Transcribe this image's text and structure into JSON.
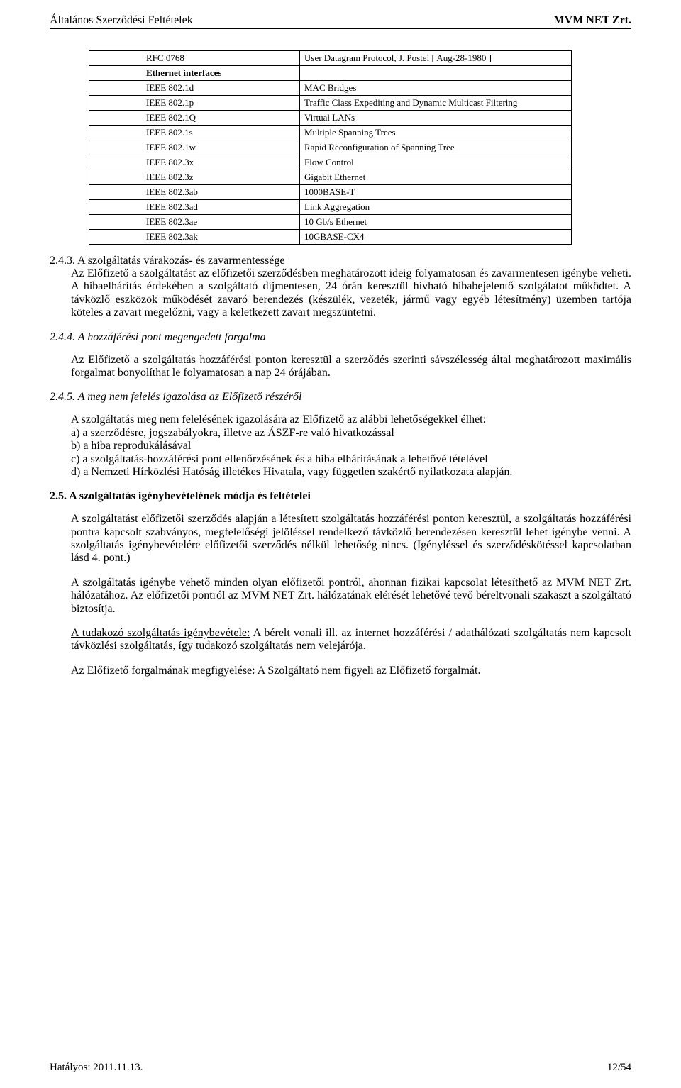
{
  "header": {
    "left": "Általános Szerződési Feltételek",
    "right": "MVM NET Zrt."
  },
  "table": {
    "rows": [
      {
        "left": "RFC 0768",
        "indent": true,
        "bold": false,
        "right": "User Datagram Protocol, J. Postel [ Aug-28-1980 ]"
      },
      {
        "left": "Ethernet interfaces",
        "indent": true,
        "bold": true,
        "right": ""
      },
      {
        "left": "IEEE 802.1d",
        "indent": true,
        "bold": false,
        "right": "MAC Bridges"
      },
      {
        "left": "IEEE 802.1p",
        "indent": true,
        "bold": false,
        "right": "Traffic Class Expediting and Dynamic Multicast Filtering"
      },
      {
        "left": "IEEE 802.1Q",
        "indent": true,
        "bold": false,
        "right": "Virtual LANs"
      },
      {
        "left": "IEEE 802.1s",
        "indent": true,
        "bold": false,
        "right": "Multiple Spanning Trees"
      },
      {
        "left": "IEEE 802.1w",
        "indent": true,
        "bold": false,
        "right": "Rapid Reconfiguration of Spanning Tree"
      },
      {
        "left": "IEEE 802.3x",
        "indent": true,
        "bold": false,
        "right": "Flow Control"
      },
      {
        "left": "IEEE 802.3z",
        "indent": true,
        "bold": false,
        "right": "Gigabit Ethernet"
      },
      {
        "left": "IEEE 802.3ab",
        "indent": true,
        "bold": false,
        "right": "1000BASE-T"
      },
      {
        "left": "IEEE 802.3ad",
        "indent": true,
        "bold": false,
        "right": "Link Aggregation"
      },
      {
        "left": "IEEE 802.3ae",
        "indent": true,
        "bold": false,
        "right": "10 Gb/s Ethernet"
      },
      {
        "left": "IEEE 802.3ak",
        "indent": true,
        "bold": false,
        "right": "10GBASE-CX4"
      }
    ]
  },
  "sec243": {
    "heading": "2.4.3. A szolgáltatás várakozás- és zavarmentessége",
    "p1": "Az Előfizető a szolgáltatást az előfizetői szerződésben meghatározott ideig folyamatosan és zavarmentesen igénybe veheti. A hibaelhárítás érdekében a szolgáltató díjmentesen, 24 órán keresztül hívható hibabejelentő szolgálatot működtet. A távközlő eszközök működését zavaró berendezés (készülék, vezeték, jármű vagy egyéb létesítmény) üzemben tartója köteles a zavart megelőzni, vagy a keletkezett zavart megszüntetni."
  },
  "sec244": {
    "heading": "2.4.4. A hozzáférési pont megengedett forgalma",
    "p1": "Az Előfizető a szolgáltatás hozzáférési ponton keresztül a szerződés szerinti sávszélesség által meghatározott maximális forgalmat bonyolíthat le folyamatosan a nap 24 órájában."
  },
  "sec245": {
    "heading": "2.4.5. A meg nem felelés igazolása az Előfizető részéről",
    "intro": "A szolgáltatás meg nem felelésének igazolására az Előfizető az alábbi lehetőségekkel élhet:",
    "items": [
      "a)  a szerződésre, jogszabályokra, illetve az ÁSZF-re való hivatkozással",
      "b)  a hiba reprodukálásával",
      "c)  a szolgáltatás-hozzáférési pont ellenőrzésének és a hiba elhárításának a lehetővé tételével",
      "d)  a Nemzeti Hírközlési Hatóság illetékes Hivatala, vagy független szakértő nyilatkozata alapján."
    ]
  },
  "sec25": {
    "heading": "2.5. A szolgáltatás igénybevételének módja és feltételei",
    "p1": "A szolgáltatást előfizetői szerződés alapján a létesített szolgáltatás hozzáférési ponton keresztül, a szolgáltatás hozzáférési pontra kapcsolt szabványos, megfelelőségi jelöléssel rendelkező távközlő berendezésen keresztül lehet igénybe venni. A szolgáltatás igénybevételére előfizetői szerződés nélkül lehetőség nincs. (Igényléssel és szerződéskötéssel kapcsolatban lásd 4. pont.)",
    "p2": "A szolgáltatás igénybe vehető minden olyan előfizetői pontról, ahonnan fizikai kapcsolat létesíthető az MVM NET Zrt. hálózatához. Az előfizetői pontról az MVM NET Zrt. hálózatának elérését lehetővé tevő béreltvonali szakaszt a szolgáltató biztosítja.",
    "p3_u": "A tudakozó szolgáltatás igénybevétele:",
    "p3_r": " A bérelt vonali ill. az internet hozzáférési / adathálózati szolgáltatás nem kapcsolt távközlési szolgáltatás, így tudakozó szolgáltatás nem velejárója.",
    "p4_u": "Az Előfizető forgalmának megfigyelése:",
    "p4_r": " A Szolgáltató nem figyeli az Előfizető forgalmát."
  },
  "footer": {
    "left": "Hatályos: 2011.11.13.",
    "right": "12/54"
  }
}
